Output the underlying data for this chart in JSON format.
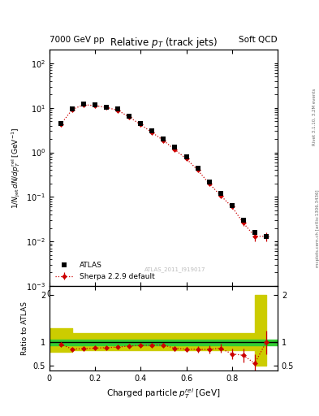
{
  "title_main": "Relative $p_T$ (track jets)",
  "top_left_label": "7000 GeV pp",
  "top_right_label": "Soft QCD",
  "right_label1": "Rivet 3.1.10, 3.2M events",
  "right_label2": "mcplots.cern.ch [arXiv:1306.3436]",
  "watermark": "ATLAS_2011_I919017",
  "xlabel": "Charged particle $p_T^{rel}$ [GeV]",
  "ylabel": "$1/N_{jet}$ dN/d$p_T^{rel}$ [GeV$^{-1}$]",
  "ylabel_ratio": "Ratio to ATLAS",
  "ylim_main": [
    0.001,
    200
  ],
  "ylim_ratio": [
    0.4,
    2.2
  ],
  "atlas_x": [
    0.05,
    0.1,
    0.15,
    0.2,
    0.25,
    0.3,
    0.35,
    0.4,
    0.45,
    0.5,
    0.55,
    0.6,
    0.65,
    0.7,
    0.75,
    0.8,
    0.85,
    0.9,
    0.95
  ],
  "atlas_y": [
    4.5,
    9.5,
    12.0,
    11.5,
    10.5,
    9.5,
    6.5,
    4.5,
    3.0,
    2.0,
    1.3,
    0.8,
    0.45,
    0.22,
    0.12,
    0.065,
    0.03,
    0.016,
    0.013
  ],
  "atlas_yerr": [
    0.3,
    0.5,
    0.6,
    0.6,
    0.5,
    0.5,
    0.4,
    0.3,
    0.2,
    0.15,
    0.1,
    0.07,
    0.04,
    0.02,
    0.01,
    0.008,
    0.004,
    0.003,
    0.002
  ],
  "sherpa_x": [
    0.05,
    0.1,
    0.15,
    0.2,
    0.25,
    0.3,
    0.35,
    0.4,
    0.45,
    0.5,
    0.55,
    0.6,
    0.65,
    0.7,
    0.75,
    0.8,
    0.85,
    0.9,
    0.95
  ],
  "sherpa_y": [
    4.3,
    9.2,
    11.8,
    11.2,
    10.2,
    8.8,
    6.2,
    4.2,
    2.8,
    1.85,
    1.15,
    0.72,
    0.4,
    0.2,
    0.108,
    0.06,
    0.026,
    0.013,
    0.013
  ],
  "sherpa_yerr": [
    0.15,
    0.2,
    0.25,
    0.25,
    0.22,
    0.2,
    0.15,
    0.12,
    0.09,
    0.07,
    0.05,
    0.04,
    0.025,
    0.014,
    0.009,
    0.006,
    0.004,
    0.003,
    0.003
  ],
  "ratio_y": [
    0.955,
    0.852,
    0.86,
    0.872,
    0.883,
    0.895,
    0.92,
    0.93,
    0.935,
    0.94,
    0.867,
    0.85,
    0.845,
    0.845,
    0.87,
    0.75,
    0.72,
    0.545,
    1.0
  ],
  "ratio_yerr": [
    0.04,
    0.035,
    0.03,
    0.03,
    0.028,
    0.028,
    0.03,
    0.035,
    0.038,
    0.042,
    0.05,
    0.055,
    0.065,
    0.08,
    0.095,
    0.12,
    0.15,
    0.2,
    0.25
  ],
  "green_band_lo": 0.94,
  "green_band_hi": 1.06,
  "yellow_band_lo": [
    0.8,
    0.8,
    0.82,
    0.82,
    0.82,
    0.82,
    0.82,
    0.82,
    0.82,
    0.82,
    0.82,
    0.82,
    0.82,
    0.82,
    0.82,
    0.82,
    0.82,
    0.82,
    0.5,
    0.5
  ],
  "yellow_band_hi": [
    1.3,
    1.3,
    1.2,
    1.2,
    1.2,
    1.2,
    1.2,
    1.2,
    1.2,
    1.2,
    1.2,
    1.2,
    1.2,
    1.2,
    1.2,
    1.2,
    1.2,
    1.2,
    2.0,
    2.0
  ],
  "yellow_band_x": [
    0.0,
    0.05,
    0.1,
    0.15,
    0.2,
    0.25,
    0.3,
    0.35,
    0.4,
    0.45,
    0.5,
    0.55,
    0.6,
    0.65,
    0.7,
    0.75,
    0.8,
    0.85,
    0.9,
    0.95
  ],
  "atlas_color": "#000000",
  "sherpa_color": "#cc0000",
  "green_color": "#33cc33",
  "yellow_color": "#cccc00",
  "xlim": [
    0.0,
    1.0
  ],
  "xticks": [
    0.0,
    0.2,
    0.4,
    0.6,
    0.8
  ],
  "xticklabels": [
    "0",
    "0.2",
    "0.4",
    "0.6",
    "0.8"
  ]
}
